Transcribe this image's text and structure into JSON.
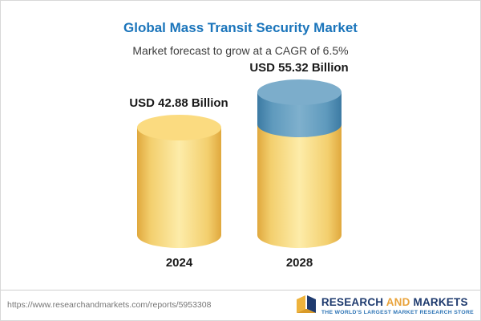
{
  "title": "Global Mass Transit Security Market",
  "subtitle": "Market forecast to grow at a CAGR of 6.5%",
  "chart_data": {
    "type": "bar",
    "categories": [
      "2024",
      "2028"
    ],
    "values": [
      42.88,
      55.32
    ],
    "value_labels": [
      "USD 42.88 Billion",
      "USD 55.32 Billion"
    ],
    "unit": "USD Billion",
    "title": "Global Mass Transit Security Market",
    "subtitle": "Market forecast to grow at a CAGR of 6.5%",
    "cagr": "6.5%",
    "legend_position": "none",
    "grid": false,
    "colors": {
      "bar_yellow": "#f2c868",
      "bar_blue": "#4d84ab",
      "title_blue": "#1b75bb"
    }
  },
  "footer": {
    "url": "https://www.researchandmarkets.com/reports/5953308",
    "logo": {
      "part1": "RESEARCH",
      "part2": "AND",
      "part3": "MARKETS",
      "tagline": "THE WORLD'S LARGEST MARKET RESEARCH STORE"
    }
  }
}
